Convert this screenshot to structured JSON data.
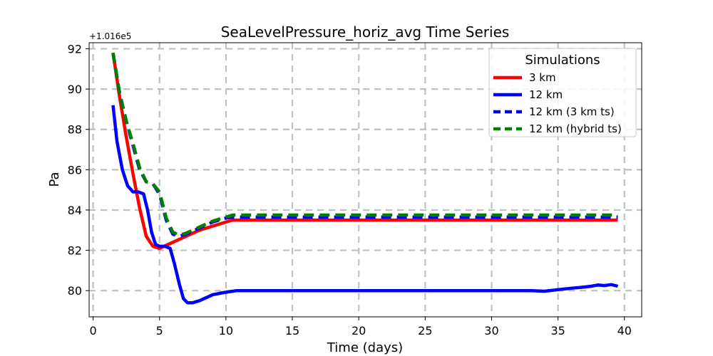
{
  "chart_data": {
    "type": "line",
    "title": "SeaLevelPressure_horiz_avg Time Series",
    "xlabel": "Time (days)",
    "ylabel": "Pa",
    "y_offset_label": "+1.016e5",
    "xlim": [
      -0.3,
      41.3
    ],
    "ylim": [
      78.7,
      92.3
    ],
    "x_ticks": [
      0,
      5,
      10,
      15,
      20,
      25,
      30,
      35,
      40
    ],
    "y_ticks": [
      80,
      82,
      84,
      86,
      88,
      90,
      92
    ],
    "grid": true,
    "legend": {
      "title": "Simulations",
      "placement": "top-right"
    },
    "series": [
      {
        "name": "3 km",
        "color": "#ff0000",
        "style": "solid",
        "x": [
          1.5,
          2.0,
          2.5,
          3.0,
          3.5,
          4.0,
          4.5,
          5.0,
          6.0,
          7.0,
          8.0,
          9.0,
          10.0,
          10.5,
          15,
          20,
          25,
          30,
          35,
          39.5
        ],
        "y": [
          91.8,
          89.6,
          87.6,
          85.8,
          84.1,
          82.7,
          82.2,
          82.1,
          82.4,
          82.7,
          83.0,
          83.2,
          83.4,
          83.5,
          83.5,
          83.5,
          83.5,
          83.5,
          83.5,
          83.5
        ]
      },
      {
        "name": "12 km",
        "color": "#0000ff",
        "style": "solid",
        "x": [
          1.5,
          1.8,
          2.2,
          2.6,
          3.0,
          3.4,
          3.8,
          4.1,
          4.4,
          4.7,
          5.0,
          5.4,
          5.8,
          6.1,
          6.5,
          6.8,
          7.1,
          7.5,
          8.0,
          9.0,
          9.8,
          10.3,
          10.8,
          15,
          20,
          25,
          30,
          33,
          34,
          35,
          36,
          37,
          37.5,
          38,
          38.5,
          39,
          39.5
        ],
        "y": [
          89.2,
          87.4,
          86.0,
          85.2,
          84.9,
          84.9,
          84.8,
          84.0,
          82.9,
          82.3,
          82.2,
          82.2,
          82.1,
          81.4,
          80.3,
          79.6,
          79.4,
          79.4,
          79.5,
          79.8,
          79.9,
          79.95,
          80.0,
          80.0,
          80.0,
          80.0,
          80.0,
          80.0,
          79.97,
          80.05,
          80.12,
          80.18,
          80.22,
          80.28,
          80.25,
          80.3,
          80.22
        ]
      },
      {
        "name": "12 km (3 km ts)",
        "color": "#0000ff",
        "style": "dashed",
        "x": [
          1.5,
          2.0,
          2.5,
          3.0,
          3.5,
          4.0,
          4.5,
          5.0,
          5.5,
          6.0,
          6.5,
          7.0,
          8.0,
          9.0,
          10.0,
          10.5,
          15,
          20,
          25,
          30,
          35,
          39.5
        ],
        "y": [
          91.8,
          89.8,
          88.4,
          87.2,
          86.0,
          85.4,
          85.3,
          84.8,
          83.5,
          82.8,
          82.7,
          82.8,
          83.1,
          83.4,
          83.6,
          83.65,
          83.65,
          83.65,
          83.65,
          83.65,
          83.65,
          83.65
        ]
      },
      {
        "name": "12 km (hybrid ts)",
        "color": "#008000",
        "style": "dashed",
        "x": [
          1.5,
          2.0,
          2.5,
          3.0,
          3.5,
          4.0,
          4.5,
          5.0,
          5.5,
          6.0,
          6.5,
          7.0,
          8.0,
          9.0,
          10.0,
          10.5,
          15,
          20,
          25,
          30,
          35,
          39.5
        ],
        "y": [
          91.8,
          89.8,
          88.4,
          87.3,
          86.1,
          85.4,
          85.3,
          84.9,
          83.6,
          82.9,
          82.75,
          82.85,
          83.15,
          83.45,
          83.65,
          83.75,
          83.75,
          83.75,
          83.75,
          83.75,
          83.75,
          83.75
        ]
      }
    ]
  }
}
